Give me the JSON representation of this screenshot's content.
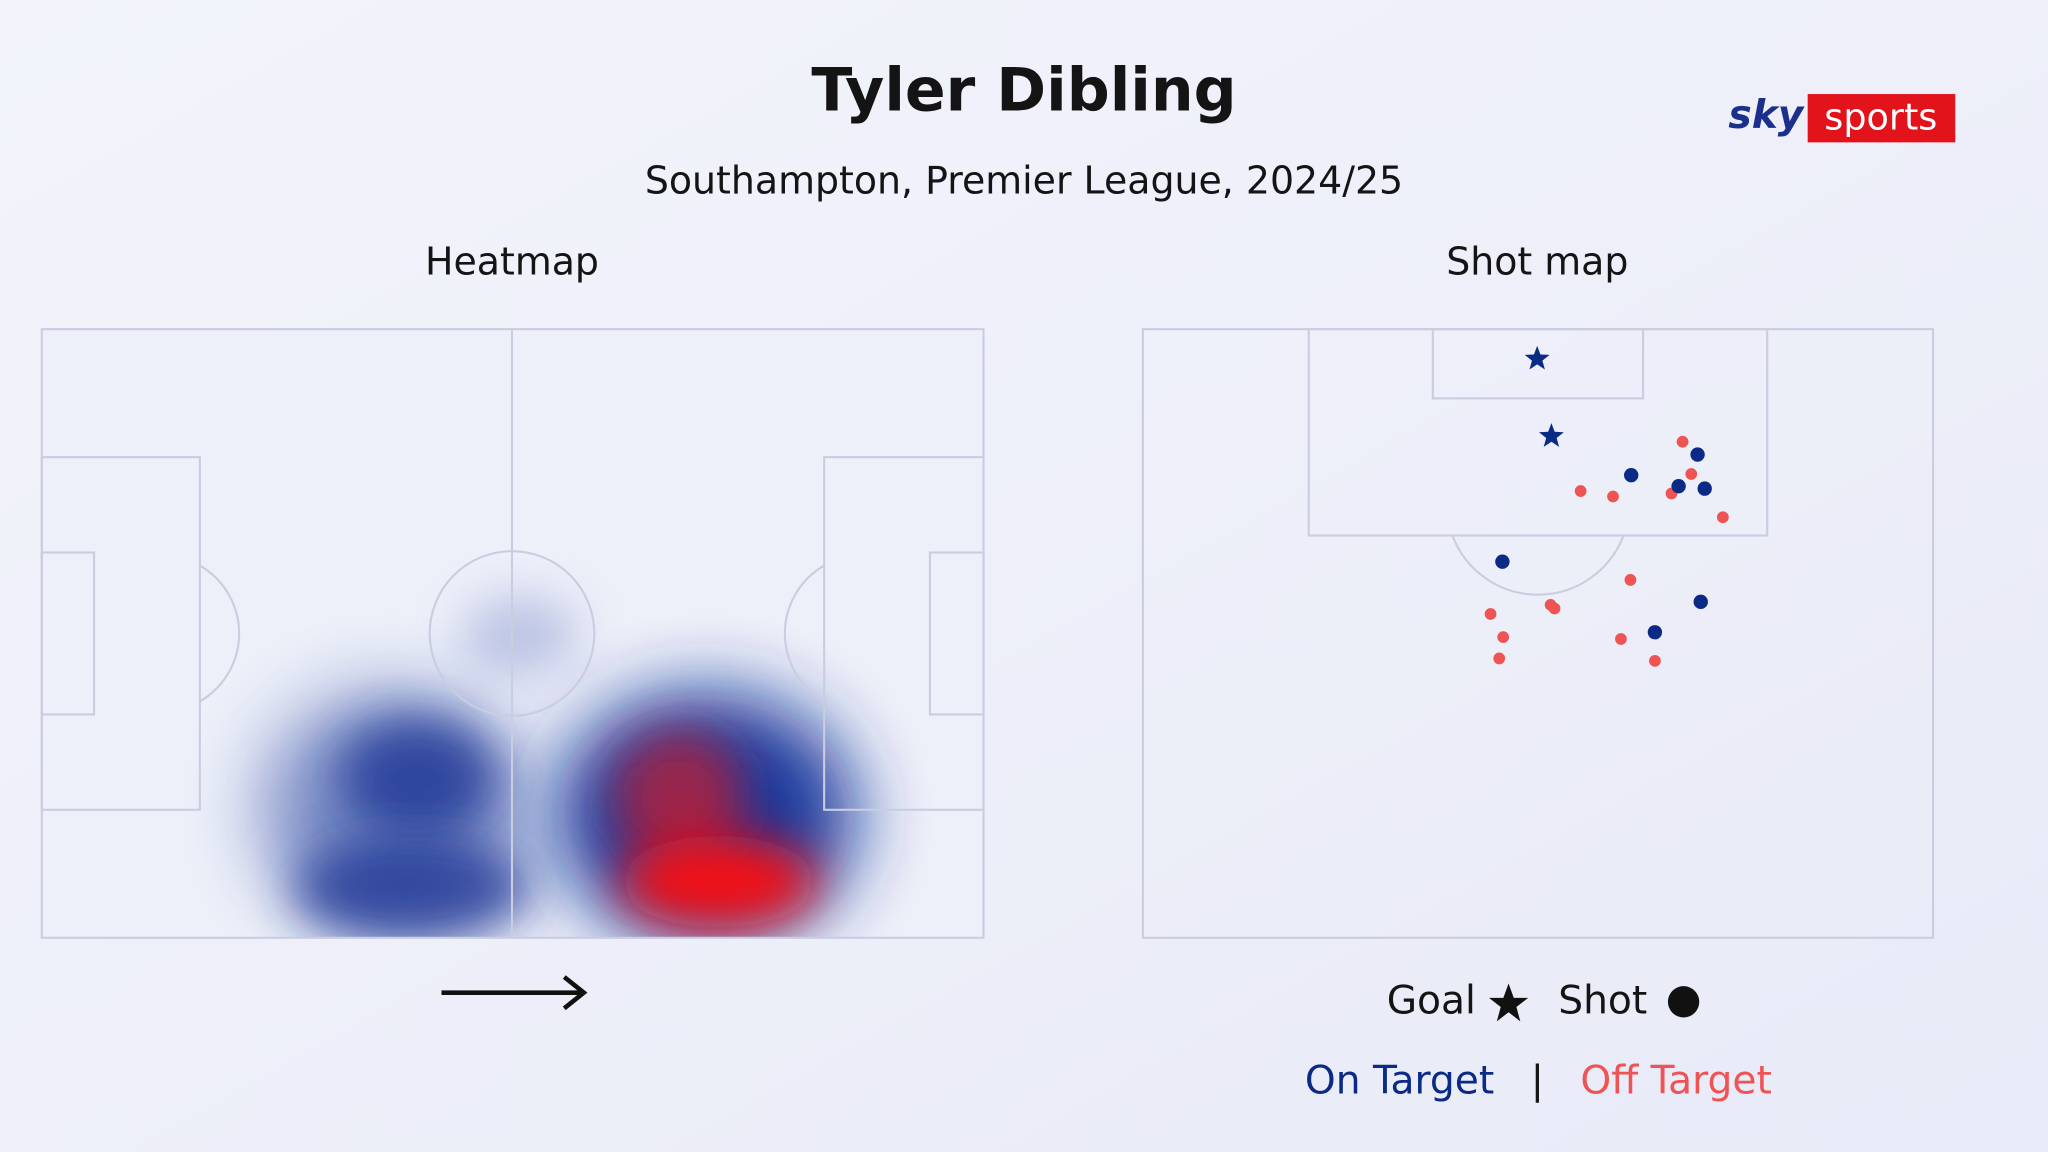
{
  "header": {
    "title": "Tyler Dibling",
    "subtitle": "Southampton, Premier League, 2024/25"
  },
  "logo": {
    "sky": "sky",
    "sports": "sports"
  },
  "heatmap": {
    "title": "Heatmap"
  },
  "shotmap": {
    "title": "Shot map",
    "colors": {
      "on_target": "#0b2a85",
      "off_target": "#ef5454"
    },
    "goals": [
      [
        49.9,
        4.9
      ],
      [
        51.7,
        17.6
      ]
    ],
    "on_target": [
      [
        61.8,
        24.0
      ],
      [
        70.2,
        20.6
      ],
      [
        67.8,
        25.8
      ],
      [
        71.1,
        26.2
      ],
      [
        45.5,
        38.2
      ],
      [
        70.6,
        44.8
      ],
      [
        64.8,
        49.8
      ]
    ],
    "off_target": [
      [
        68.3,
        18.5
      ],
      [
        69.4,
        23.8
      ],
      [
        66.9,
        27.0
      ],
      [
        55.4,
        26.6
      ],
      [
        59.5,
        27.5
      ],
      [
        73.4,
        30.9
      ],
      [
        61.7,
        41.2
      ],
      [
        51.6,
        45.3
      ],
      [
        52.1,
        45.9
      ],
      [
        44.0,
        46.8
      ],
      [
        45.6,
        50.6
      ],
      [
        45.1,
        54.1
      ],
      [
        60.5,
        50.9
      ],
      [
        64.8,
        54.5
      ]
    ]
  },
  "legend": {
    "goal": "Goal",
    "shot": "Shot",
    "on_target": "On Target",
    "separator": "|",
    "off_target": "Off Target"
  }
}
